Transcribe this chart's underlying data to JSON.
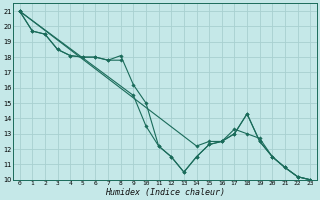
{
  "title": "",
  "xlabel": "Humidex (Indice chaleur)",
  "ylabel": "",
  "bg_color": "#c5e8e8",
  "grid_color": "#a8d0d0",
  "line_color": "#1a6b5a",
  "xlim": [
    -0.5,
    23.5
  ],
  "ylim": [
    10,
    21.5
  ],
  "xticks": [
    0,
    1,
    2,
    3,
    4,
    5,
    6,
    7,
    8,
    9,
    10,
    11,
    12,
    13,
    14,
    15,
    16,
    17,
    18,
    19,
    20,
    21,
    22,
    23
  ],
  "yticks": [
    10,
    11,
    12,
    13,
    14,
    15,
    16,
    17,
    18,
    19,
    20,
    21
  ],
  "series": [
    {
      "x": [
        0,
        1,
        2,
        3,
        4,
        5,
        6,
        7,
        8
      ],
      "y": [
        21,
        19.7,
        19.5,
        18.5,
        18.1,
        18.0,
        18.0,
        17.8,
        17.8
      ]
    },
    {
      "x": [
        0,
        1,
        2,
        3,
        4,
        5,
        6,
        7,
        8,
        9,
        10,
        11,
        12,
        13,
        14,
        15,
        16,
        17,
        18,
        19,
        20,
        21,
        22,
        23
      ],
      "y": [
        21,
        19.7,
        19.5,
        18.5,
        18.1,
        18.0,
        18.0,
        17.8,
        18.1,
        16.2,
        15.0,
        12.2,
        11.5,
        10.5,
        11.5,
        12.3,
        12.5,
        13.0,
        14.3,
        12.5,
        11.5,
        10.8,
        10.2,
        10.0
      ]
    },
    {
      "x": [
        0,
        14,
        15,
        16,
        17,
        18,
        19,
        20,
        21,
        22,
        23
      ],
      "y": [
        21,
        12.2,
        12.5,
        12.5,
        13.3,
        13.0,
        12.7,
        11.5,
        10.8,
        10.2,
        10.0
      ]
    },
    {
      "x": [
        0,
        9,
        10,
        11,
        12,
        13,
        14,
        15,
        16,
        17,
        18,
        19,
        20,
        21,
        22,
        23
      ],
      "y": [
        21,
        15.5,
        13.5,
        12.2,
        11.5,
        10.5,
        11.5,
        12.3,
        12.5,
        13.0,
        14.3,
        12.5,
        11.5,
        10.8,
        10.2,
        10.0
      ]
    }
  ]
}
